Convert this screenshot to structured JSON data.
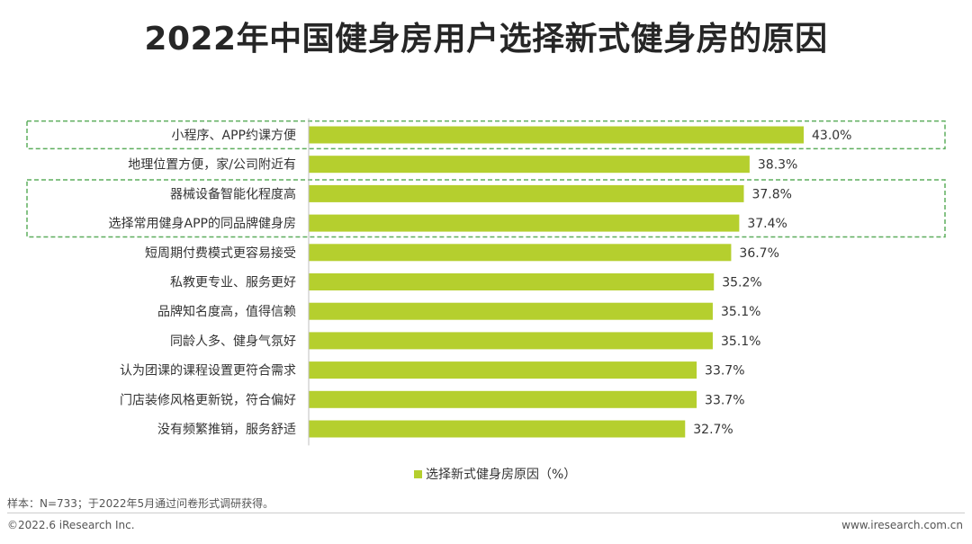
{
  "title": "2022年中国健身房用户选择新式健身房的原因",
  "legend_label": "选择新式健身房原因（%）",
  "note": "样本：N=733；于2022年5月通过问卷形式调研获得。",
  "footer": {
    "copyright": "©2022.6 iResearch Inc.",
    "website": "www.iresearch.com.cn"
  },
  "colors": {
    "bar": "#b5cf2e",
    "highlight_border": "#5eae5e",
    "axis": "#bfbfbf"
  },
  "chart_data": {
    "type": "bar",
    "orientation": "horizontal",
    "categories": [
      "小程序、APP约课方便",
      "地理位置方便，家/公司附近有",
      "器械设备智能化程度高",
      "选择常用健身APP的同品牌健身房",
      "短周期付费模式更容易接受",
      "私教更专业、服务更好",
      "品牌知名度高，值得信赖",
      "同龄人多、健身气氛好",
      "认为团课的课程设置更符合需求",
      "门店装修风格更新锐，符合偏好",
      "没有频繁推销，服务舒适"
    ],
    "series": [
      {
        "name": "选择新式健身房原因（%）",
        "values": [
          43.0,
          38.3,
          37.8,
          37.4,
          36.7,
          35.2,
          35.1,
          35.1,
          33.7,
          33.7,
          32.7
        ]
      }
    ],
    "value_labels": [
      "43.0%",
      "38.3%",
      "37.8%",
      "37.4%",
      "36.7%",
      "35.2%",
      "35.1%",
      "35.1%",
      "33.7%",
      "33.7%",
      "32.7%"
    ],
    "highlighted_categories": [
      "小程序、APP约课方便",
      "器械设备智能化程度高",
      "选择常用健身APP的同品牌健身房"
    ],
    "xlim": [
      0,
      43.0
    ],
    "legend_position": "bottom",
    "grid": false
  }
}
